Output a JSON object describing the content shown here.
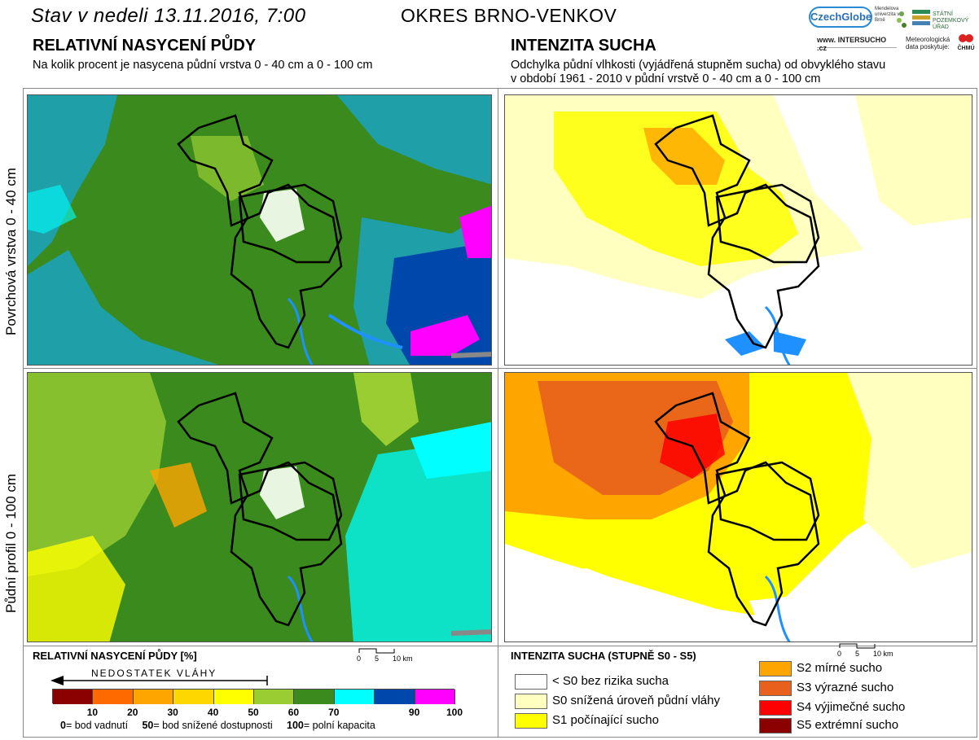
{
  "header": {
    "date_title": "Stav v nedeli 13.11.2016, 7:00",
    "district_title": "OKRES BRNO-VENKOV"
  },
  "logos": {
    "czechglobe": "CzechGlobe",
    "mendel": "Mendelova univerzita v Brně",
    "spu": "STÁTNÍ POZEMKOVÝ ÚŘAD",
    "intersucho": "www. INTERSUCHO .cz",
    "chmu_text": "Meteorologická data poskytuje:",
    "chmu": "ČHMÚ"
  },
  "left_section": {
    "title": "RELATIVNÍ NASYCENÍ PŮDY",
    "subtitle": "Na kolik procent je nasycena půdní vrstva 0 - 40 cm a 0 - 100 cm"
  },
  "right_section": {
    "title": "INTENZITA SUCHA",
    "subtitle_line1": "Odchylka půdní vlhkosti (vyjádřená stupněm sucha) od obvyklého stavu",
    "subtitle_line2": "v období 1961 - 2010 v půdní vrstvě 0 - 40 cm a 0 - 100 cm"
  },
  "row_labels": {
    "top": "Povrchová vrstva 0 - 40 cm",
    "bottom": "Půdní profil 0 - 100 cm"
  },
  "left_legend": {
    "title": "RELATIVNÍ NASYCENÍ PŮDY [%]",
    "deficit_label": "NEDOSTATEK VLÁHY",
    "colors": [
      "#8b0000",
      "#ff6a00",
      "#ffa500",
      "#ffd700",
      "#ffff00",
      "#9acd32",
      "#3a8a1e",
      "#00ffff",
      "#0047ab",
      "#ff00ff"
    ],
    "ticks": [
      "10",
      "20",
      "30",
      "40",
      "50",
      "60",
      "70",
      "90",
      "100"
    ],
    "note_0_num": "0",
    "note_0_text": "= bod vadnutí",
    "note_50_num": "50",
    "note_50_text": "= bod snížené dostupnosti",
    "note_100_num": "100",
    "note_100_text": "= polní kapacita"
  },
  "right_legend": {
    "title": "INTENZITA SUCHA (STUPNĚ S0 - S5)",
    "items": [
      {
        "label": "< S0 bez rizika sucha",
        "color": "#ffffff"
      },
      {
        "label": "S0 snížená úroveň půdní vláhy",
        "color": "#ffffc0"
      },
      {
        "label": "S1 počínající sucho",
        "color": "#ffff00"
      },
      {
        "label": "S2 mírné sucho",
        "color": "#ffa500"
      },
      {
        "label": "S3 výrazné sucho",
        "color": "#e8601c"
      },
      {
        "label": "S4 výjimečné sucho",
        "color": "#ff0000"
      },
      {
        "label": "S5 extrémní sucho",
        "color": "#8b0000"
      }
    ]
  },
  "scale_bar": {
    "zero": "0",
    "five": "5",
    "ten": "10 km"
  },
  "map_colors": {
    "saturation_green": "#3a8a1e",
    "saturation_cyan": "#00ffff",
    "saturation_blue": "#0047ab",
    "saturation_magenta": "#ff00ff",
    "saturation_lightgreen": "#9acd32",
    "saturation_yellow": "#ffff00",
    "drought_pale": "#ffffc0",
    "drought_yellow": "#ffff00",
    "drought_orange": "#ffa500",
    "drought_darkorange": "#e8601c",
    "drought_red": "#ff0000",
    "water": "#1e90ff"
  }
}
